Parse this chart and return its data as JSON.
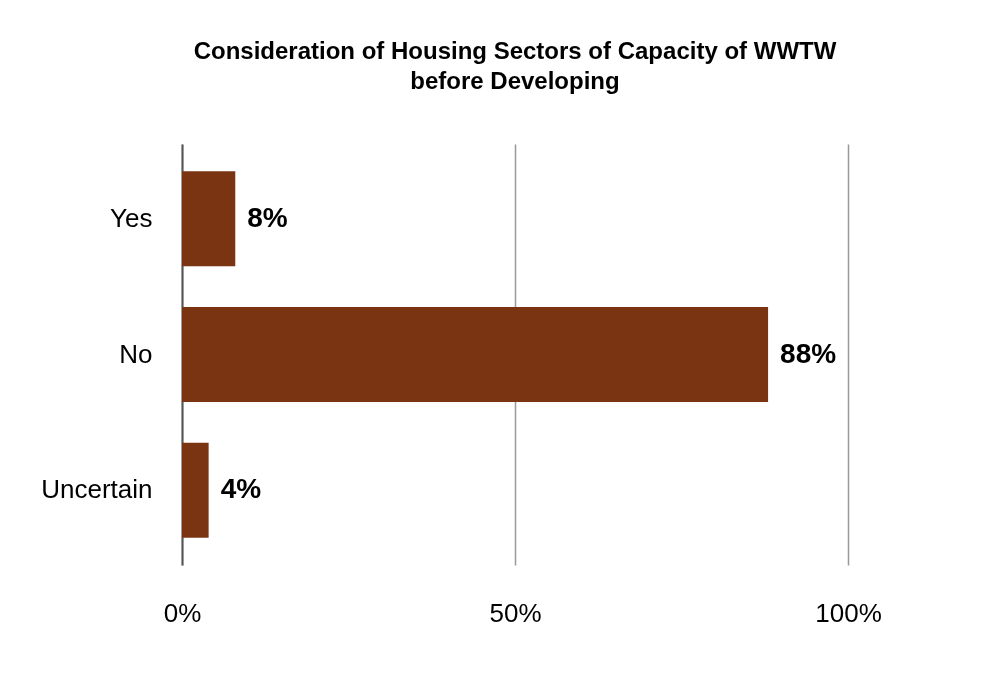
{
  "chart_data": {
    "type": "bar",
    "title": "Consideration of Housing Sectors of Capacity of WWTW before Developing",
    "orientation": "horizontal",
    "categories": [
      "Yes",
      "No",
      "Uncertain"
    ],
    "values": [
      8,
      88,
      4
    ],
    "color": "#7a3412",
    "value_labels": [
      "8%",
      "88%",
      "4%"
    ],
    "xlim": [
      0,
      100
    ],
    "xticks": [
      {
        "value": 0,
        "label": "0%"
      },
      {
        "value": 50,
        "label": "50%"
      },
      {
        "value": 100,
        "label": "100%"
      }
    ],
    "grid": "x"
  }
}
